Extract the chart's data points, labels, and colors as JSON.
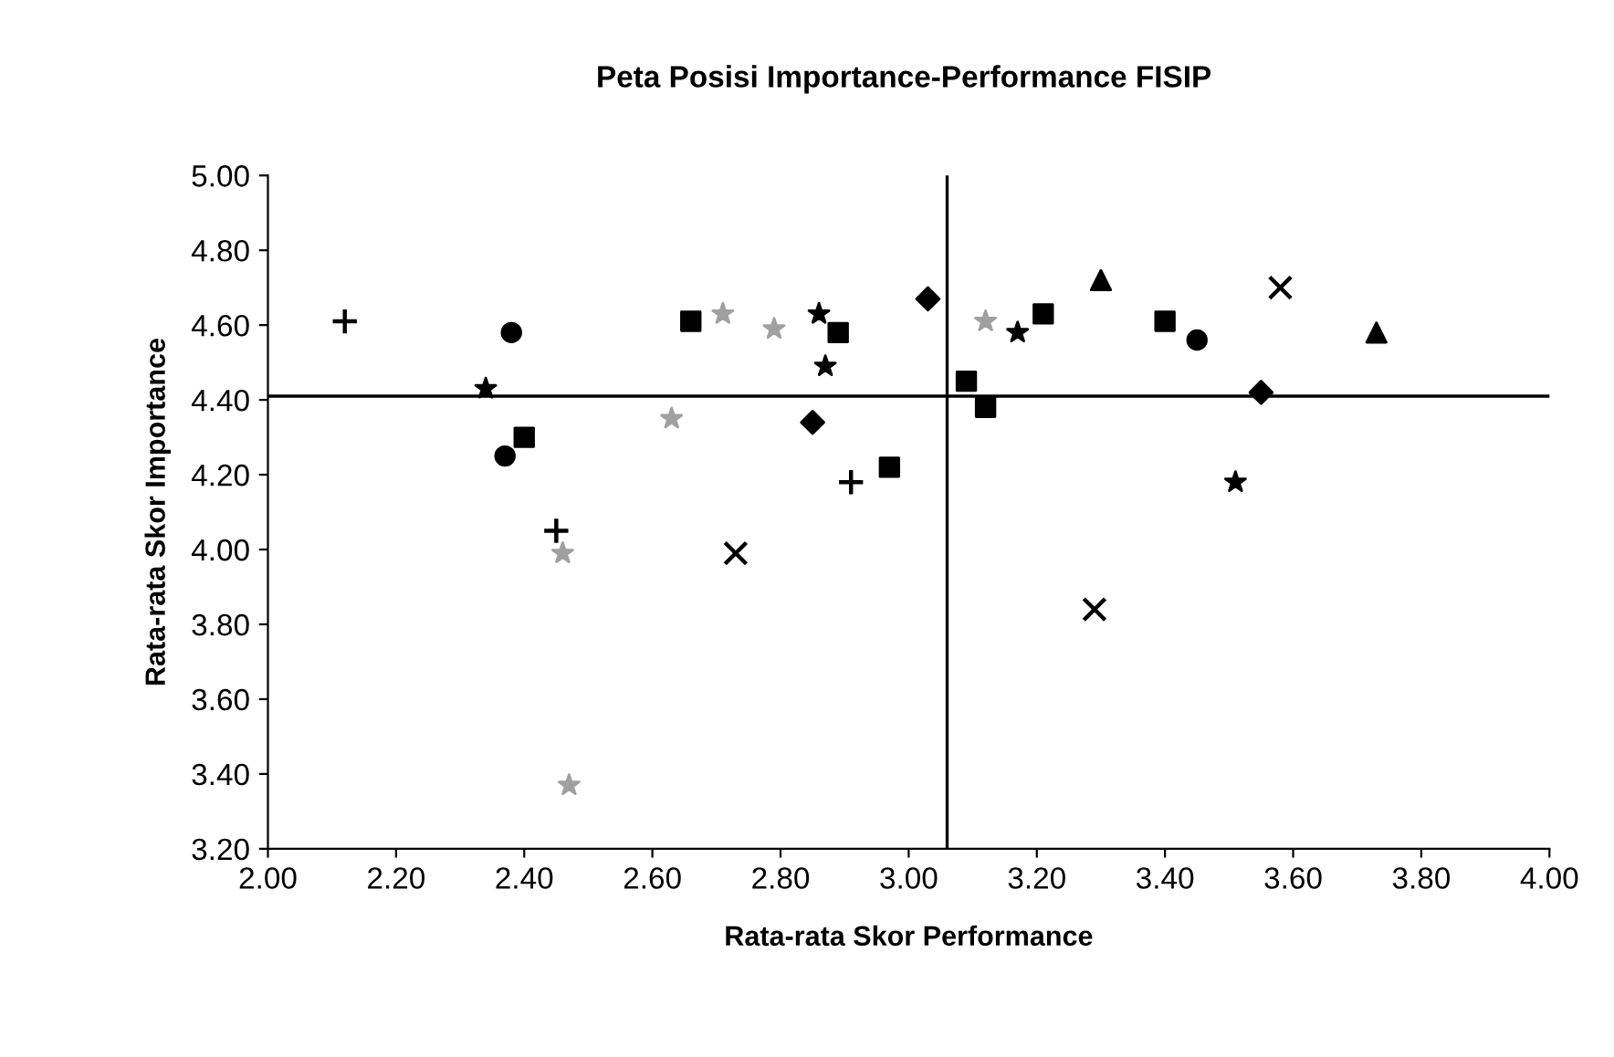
{
  "chart_data": {
    "type": "scatter",
    "title": "Peta Posisi Importance-Performance FISIP",
    "xlabel": "Rata-rata Skor Performance",
    "ylabel": "Rata-rata Skor Importance",
    "xlim": [
      2.0,
      4.0
    ],
    "xticks": [
      {
        "value": 2.0,
        "label": "2.00"
      },
      {
        "value": 2.2,
        "label": "2.20"
      },
      {
        "value": 2.4,
        "label": "2.40"
      },
      {
        "value": 2.6,
        "label": "2.60"
      },
      {
        "value": 2.8,
        "label": "2.80"
      },
      {
        "value": 3.0,
        "label": "3.00"
      },
      {
        "value": 3.2,
        "label": "3.20"
      },
      {
        "value": 3.4,
        "label": "3.40"
      },
      {
        "value": 3.6,
        "label": "3.60"
      },
      {
        "value": 3.8,
        "label": "3.80"
      },
      {
        "value": 4.0,
        "label": "4.00"
      }
    ],
    "ylim": [
      3.2,
      5.0
    ],
    "yticks": [
      {
        "value": 3.2,
        "label": "3.20"
      },
      {
        "value": 3.4,
        "label": "3.40"
      },
      {
        "value": 3.6,
        "label": "3.60"
      },
      {
        "value": 3.8,
        "label": "3.80"
      },
      {
        "value": 4.0,
        "label": "4.00"
      },
      {
        "value": 4.2,
        "label": "4.20"
      },
      {
        "value": 4.4,
        "label": "4.40"
      },
      {
        "value": 4.6,
        "label": "4.60"
      },
      {
        "value": 4.8,
        "label": "4.80"
      },
      {
        "value": 5.0,
        "label": "5.00"
      }
    ],
    "grid": false,
    "legend": false,
    "ref_lines": [
      {
        "axis": "x",
        "value": 3.06,
        "color": "#000000"
      },
      {
        "axis": "y",
        "value": 4.41,
        "color": "#000000"
      }
    ],
    "series": [
      {
        "color": "#000000",
        "marker": "plus",
        "x": [
          2.12,
          2.45,
          2.91
        ],
        "values": [
          4.61,
          4.05,
          4.18
        ]
      },
      {
        "color": "#000000",
        "marker": "circle",
        "x": [
          2.38,
          2.37,
          3.45
        ],
        "values": [
          4.58,
          4.25,
          4.56
        ]
      },
      {
        "color": "#000000",
        "marker": "star",
        "x": [
          2.34,
          2.86,
          2.87,
          3.17,
          3.51
        ],
        "values": [
          4.43,
          4.63,
          4.49,
          4.58,
          4.18
        ]
      },
      {
        "color": "#000000",
        "marker": "cross",
        "x": [
          2.73,
          3.29,
          3.58
        ],
        "values": [
          3.99,
          3.84,
          4.7
        ]
      },
      {
        "color": "#000000",
        "marker": "square",
        "x": [
          2.4,
          2.66,
          2.89,
          2.97,
          3.09,
          3.12,
          3.21
        ],
        "values": [
          4.3,
          4.61,
          4.58,
          4.22,
          4.45,
          4.38,
          4.63
        ]
      },
      {
        "color": "#000000",
        "marker": "diamond",
        "x": [
          2.85,
          3.03,
          3.55
        ],
        "values": [
          4.34,
          4.67,
          4.42
        ]
      },
      {
        "color": "#000000",
        "marker": "triangle",
        "x": [
          3.3,
          3.73
        ],
        "values": [
          4.72,
          4.58
        ]
      },
      {
        "color": "#000000",
        "marker": "square",
        "x": [
          3.4
        ],
        "values": [
          4.61
        ]
      },
      {
        "color": "#a0a0a0",
        "marker": "star",
        "x": [
          2.71,
          2.79,
          2.63,
          3.12,
          2.46,
          2.47
        ],
        "values": [
          4.63,
          4.59,
          4.35,
          4.61,
          3.99,
          3.37
        ]
      }
    ]
  }
}
